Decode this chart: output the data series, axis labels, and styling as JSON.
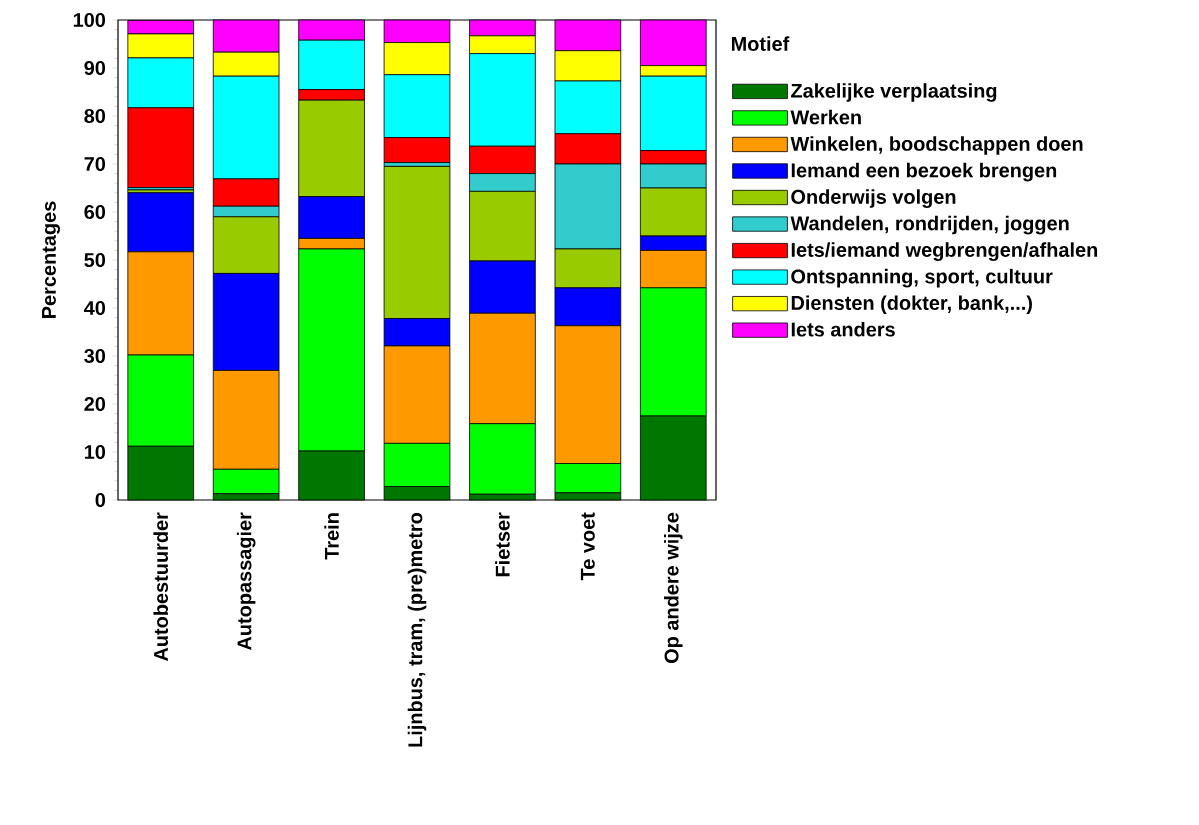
{
  "chart_data": {
    "type": "bar",
    "stacked": true,
    "ylabel": "Percentages",
    "legend_title": "Motief",
    "legend": "right",
    "categories": [
      "Autobestuurder",
      "Autopassagier",
      "Trein",
      "Lijnbus, tram, (pre)metro",
      "Fietser",
      "Te voet",
      "Op andere wijze"
    ],
    "ylim": [
      0,
      100
    ],
    "yticks": [
      0,
      10,
      20,
      30,
      40,
      50,
      60,
      70,
      80,
      90,
      100
    ],
    "series": [
      {
        "name": "Zakelijke verplaatsing",
        "color": "#007700",
        "values": [
          11.2,
          1.3,
          10.2,
          2.8,
          1.2,
          1.5,
          17.5
        ]
      },
      {
        "name": "Werken",
        "color": "#00ff00",
        "values": [
          19.0,
          5.1,
          42.1,
          9.0,
          14.7,
          6.1,
          26.7
        ]
      },
      {
        "name": "Winkelen, boodschappen doen",
        "color": "#ff9900",
        "values": [
          21.5,
          20.6,
          2.2,
          20.3,
          23.0,
          28.7,
          7.8
        ]
      },
      {
        "name": "Iemand een bezoek brengen",
        "color": "#0000ff",
        "values": [
          12.3,
          20.2,
          8.7,
          5.7,
          10.9,
          7.9,
          3.0
        ]
      },
      {
        "name": "Onderwijs volgen",
        "color": "#99cc00",
        "values": [
          0.6,
          11.8,
          20.1,
          31.7,
          14.5,
          8.1,
          10.0
        ]
      },
      {
        "name": "Wandelen, rondrijden, joggen",
        "color": "#33cccc",
        "values": [
          0.5,
          2.2,
          0,
          0.8,
          3.7,
          17.7,
          5.0
        ]
      },
      {
        "name": "Iets/iemand wegbrengen/afhalen",
        "color": "#ff0000",
        "values": [
          16.6,
          5.7,
          2.2,
          5.2,
          5.7,
          6.3,
          2.8
        ]
      },
      {
        "name": "Ontspanning, sport, cultuur",
        "color": "#00ffff",
        "values": [
          10.4,
          21.4,
          10.3,
          13.1,
          19.3,
          11.0,
          15.5
        ]
      },
      {
        "name": "Diensten (dokter, bank,...)",
        "color": "#ffff00",
        "values": [
          5.0,
          5.0,
          0,
          6.7,
          3.7,
          6.3,
          2.2
        ]
      },
      {
        "name": "Iets anders",
        "color": "#ff00ff",
        "values": [
          2.8,
          6.7,
          4.2,
          4.7,
          3.3,
          6.4,
          9.5
        ]
      }
    ]
  }
}
